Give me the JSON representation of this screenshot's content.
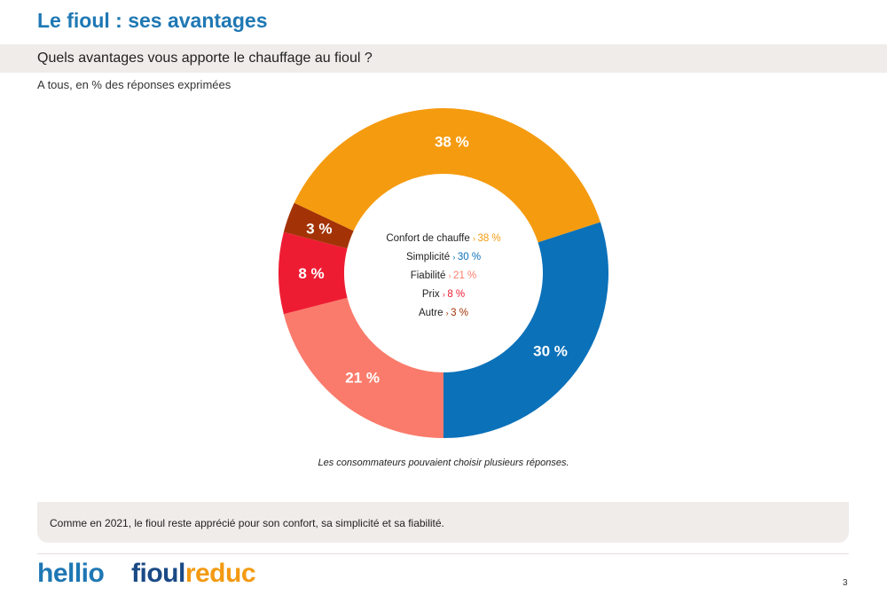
{
  "header": {
    "title": "Le fioul : ses avantages",
    "question": "Quels avantages vous apporte le chauffage au fioul ?",
    "subtitle": "A tous, en % des réponses exprimées"
  },
  "chart_data": {
    "type": "pie",
    "donut": true,
    "categories": [
      "Confort de chauffe",
      "Simplicité",
      "Fiabilité",
      "Prix",
      "Autre"
    ],
    "values": [
      38,
      30,
      21,
      8,
      3
    ],
    "value_labels": [
      "38 %",
      "30 %",
      "21 %",
      "8 %",
      "3 %"
    ],
    "colors": [
      "#f59b0f",
      "#0b71b9",
      "#fa7b6b",
      "#ee1c33",
      "#a33306"
    ],
    "legend_placement": "center"
  },
  "legend_separator": "›",
  "note": "Les consommateurs pouvaient choisir plusieurs réponses.",
  "comment": "Comme en 2021, le fioul reste apprécié pour son confort, sa simplicité et sa fiabilité.",
  "footer": {
    "logo_hellio": "hellio",
    "logo_fioul_part1": "fioul",
    "logo_fioul_part2": "reduc",
    "page_number": "3"
  }
}
